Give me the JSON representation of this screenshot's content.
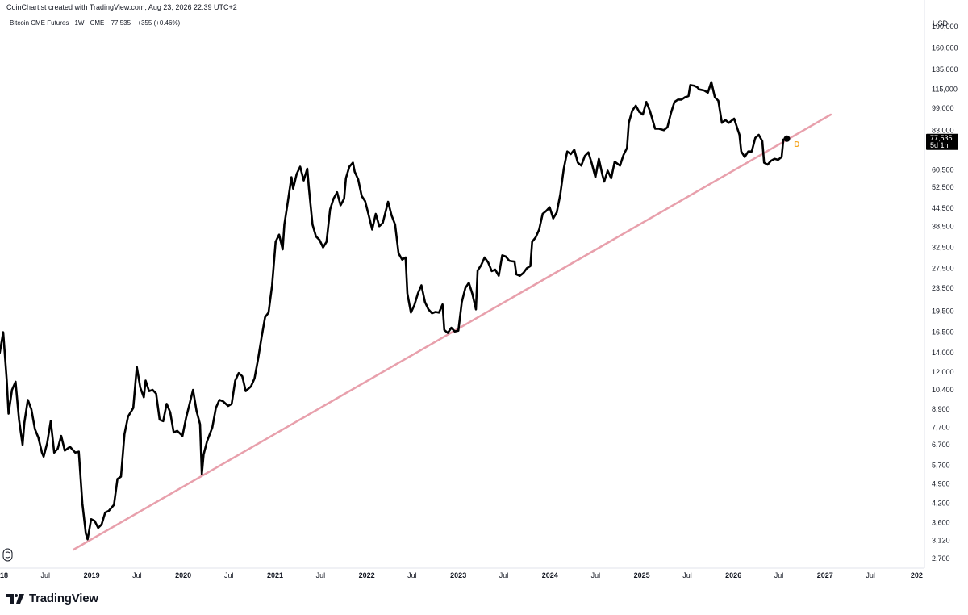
{
  "header": {
    "credit": "CoinChartist created with TradingView.com, Aug 23, 2026 22:39 UTC+2",
    "legend_symbol": "Bitcoin CME Futures · 1W · CME",
    "legend_price": "77,535",
    "legend_change": "+355 (+0.46%)"
  },
  "price_axis": {
    "currency": "USD",
    "last_price_label": "77,535",
    "countdown_label": "5d 1h"
  },
  "brand": {
    "name": "TradingView"
  },
  "colors": {
    "price_line": "#000000",
    "trendline": "#e8a0ac",
    "marker_d": "#f5a623",
    "axis_text": "#131722",
    "price_box": "#000000"
  },
  "chart_data": {
    "type": "line",
    "title": "Bitcoin CME Futures · 1W · CME",
    "scale": "log",
    "ylim": [
      2500,
      235000
    ],
    "xlim": [
      "2018-01-01",
      "2028-02-01"
    ],
    "grid": false,
    "y_ticks": [
      2700,
      3120,
      3600,
      4200,
      4900,
      5700,
      6700,
      7700,
      8900,
      10400,
      12000,
      14000,
      16500,
      19500,
      23500,
      27500,
      32500,
      38500,
      44500,
      52500,
      60500,
      70000,
      83000,
      99000,
      115000,
      135000,
      160000,
      190000
    ],
    "y_tick_labels": [
      "2,700",
      "3,120",
      "3,600",
      "4,200",
      "4,900",
      "5,700",
      "6,700",
      "7,700",
      "8,900",
      "10,400",
      "12,000",
      "14,000",
      "16,500",
      "19,500",
      "23,500",
      "27,500",
      "32,500",
      "38,500",
      "44,500",
      "52,500",
      "60,500",
      "",
      "83,000",
      "99,000",
      "115,000",
      "135,000",
      "160,000",
      "190,000"
    ],
    "x_ticks": [
      {
        "date": "2018-01-01",
        "label": "2018",
        "year": true
      },
      {
        "date": "2018-07-01",
        "label": "Jul",
        "year": false
      },
      {
        "date": "2019-01-01",
        "label": "2019",
        "year": true
      },
      {
        "date": "2019-07-01",
        "label": "Jul",
        "year": false
      },
      {
        "date": "2020-01-01",
        "label": "2020",
        "year": true
      },
      {
        "date": "2020-07-01",
        "label": "Jul",
        "year": false
      },
      {
        "date": "2021-01-01",
        "label": "2021",
        "year": true
      },
      {
        "date": "2021-07-01",
        "label": "Jul",
        "year": false
      },
      {
        "date": "2022-01-01",
        "label": "2022",
        "year": true
      },
      {
        "date": "2022-07-01",
        "label": "Jul",
        "year": false
      },
      {
        "date": "2023-01-01",
        "label": "2023",
        "year": true
      },
      {
        "date": "2023-07-01",
        "label": "Jul",
        "year": false
      },
      {
        "date": "2024-01-01",
        "label": "2024",
        "year": true
      },
      {
        "date": "2024-07-01",
        "label": "Jul",
        "year": false
      },
      {
        "date": "2025-01-01",
        "label": "2025",
        "year": true
      },
      {
        "date": "2025-07-01",
        "label": "Jul",
        "year": false
      },
      {
        "date": "2026-01-01",
        "label": "2026",
        "year": true
      },
      {
        "date": "2026-07-01",
        "label": "Jul",
        "year": false
      },
      {
        "date": "2027-01-01",
        "label": "2027",
        "year": true
      },
      {
        "date": "2027-07-01",
        "label": "Jul",
        "year": false
      },
      {
        "date": "2028-01-01",
        "label": "202",
        "year": true
      }
    ],
    "series": [
      {
        "values": [
          [
            "2017-12-31",
            14000
          ],
          [
            "2018-01-14",
            16500
          ],
          [
            "2018-01-28",
            11200
          ],
          [
            "2018-02-04",
            8600
          ],
          [
            "2018-02-18",
            10400
          ],
          [
            "2018-03-04",
            11100
          ],
          [
            "2018-03-18",
            8200
          ],
          [
            "2018-04-01",
            6700
          ],
          [
            "2018-04-08",
            8000
          ],
          [
            "2018-04-22",
            9600
          ],
          [
            "2018-05-06",
            8900
          ],
          [
            "2018-05-20",
            7600
          ],
          [
            "2018-06-03",
            7100
          ],
          [
            "2018-06-17",
            6300
          ],
          [
            "2018-06-24",
            6100
          ],
          [
            "2018-07-08",
            6800
          ],
          [
            "2018-07-22",
            8100
          ],
          [
            "2018-08-05",
            6300
          ],
          [
            "2018-08-19",
            6500
          ],
          [
            "2018-09-02",
            7200
          ],
          [
            "2018-09-16",
            6400
          ],
          [
            "2018-10-07",
            6600
          ],
          [
            "2018-10-28",
            6300
          ],
          [
            "2018-11-11",
            6350
          ],
          [
            "2018-11-25",
            4200
          ],
          [
            "2018-12-09",
            3300
          ],
          [
            "2018-12-16",
            3150
          ],
          [
            "2018-12-30",
            3700
          ],
          [
            "2019-01-13",
            3650
          ],
          [
            "2019-01-27",
            3450
          ],
          [
            "2019-02-10",
            3550
          ],
          [
            "2019-02-24",
            3900
          ],
          [
            "2019-03-10",
            3950
          ],
          [
            "2019-03-31",
            4150
          ],
          [
            "2019-04-14",
            5100
          ],
          [
            "2019-04-28",
            5200
          ],
          [
            "2019-05-12",
            7300
          ],
          [
            "2019-05-26",
            8400
          ],
          [
            "2019-06-16",
            9000
          ],
          [
            "2019-06-30",
            12500
          ],
          [
            "2019-07-14",
            10600
          ],
          [
            "2019-07-28",
            9800
          ],
          [
            "2019-08-04",
            11200
          ],
          [
            "2019-08-18",
            10300
          ],
          [
            "2019-09-01",
            10400
          ],
          [
            "2019-09-15",
            10100
          ],
          [
            "2019-09-29",
            8200
          ],
          [
            "2019-10-13",
            8100
          ],
          [
            "2019-10-27",
            9300
          ],
          [
            "2019-11-10",
            8700
          ],
          [
            "2019-11-24",
            7400
          ],
          [
            "2019-12-08",
            7500
          ],
          [
            "2019-12-29",
            7200
          ],
          [
            "2020-01-12",
            8300
          ],
          [
            "2020-02-09",
            10400
          ],
          [
            "2020-02-23",
            8800
          ],
          [
            "2020-03-08",
            7900
          ],
          [
            "2020-03-15",
            5300
          ],
          [
            "2020-03-22",
            6200
          ],
          [
            "2020-04-05",
            6900
          ],
          [
            "2020-04-26",
            7700
          ],
          [
            "2020-05-10",
            9000
          ],
          [
            "2020-05-24",
            9600
          ],
          [
            "2020-06-07",
            9500
          ],
          [
            "2020-06-28",
            9150
          ],
          [
            "2020-07-12",
            9300
          ],
          [
            "2020-07-26",
            11200
          ],
          [
            "2020-08-09",
            11900
          ],
          [
            "2020-08-23",
            11600
          ],
          [
            "2020-09-06",
            10300
          ],
          [
            "2020-09-27",
            10700
          ],
          [
            "2020-10-11",
            11400
          ],
          [
            "2020-10-25",
            13300
          ],
          [
            "2020-11-08",
            15800
          ],
          [
            "2020-11-22",
            18600
          ],
          [
            "2020-12-06",
            19300
          ],
          [
            "2020-12-20",
            24000
          ],
          [
            "2021-01-03",
            34000
          ],
          [
            "2021-01-17",
            36000
          ],
          [
            "2021-01-31",
            32000
          ],
          [
            "2021-02-07",
            39000
          ],
          [
            "2021-02-21",
            47000
          ],
          [
            "2021-03-07",
            57000
          ],
          [
            "2021-03-14",
            52000
          ],
          [
            "2021-03-28",
            58500
          ],
          [
            "2021-04-11",
            62000
          ],
          [
            "2021-04-25",
            55500
          ],
          [
            "2021-05-09",
            61000
          ],
          [
            "2021-05-16",
            52000
          ],
          [
            "2021-05-30",
            39000
          ],
          [
            "2021-06-13",
            35500
          ],
          [
            "2021-06-27",
            34500
          ],
          [
            "2021-07-11",
            32500
          ],
          [
            "2021-07-25",
            34000
          ],
          [
            "2021-08-08",
            44000
          ],
          [
            "2021-08-22",
            48000
          ],
          [
            "2021-09-05",
            50500
          ],
          [
            "2021-09-19",
            45500
          ],
          [
            "2021-10-03",
            48000
          ],
          [
            "2021-10-10",
            56500
          ],
          [
            "2021-10-24",
            62000
          ],
          [
            "2021-11-07",
            64000
          ],
          [
            "2021-11-14",
            59500
          ],
          [
            "2021-11-28",
            56000
          ],
          [
            "2021-12-12",
            49000
          ],
          [
            "2021-12-26",
            47000
          ],
          [
            "2022-01-09",
            42000
          ],
          [
            "2022-01-23",
            37500
          ],
          [
            "2022-02-06",
            42500
          ],
          [
            "2022-02-20",
            38500
          ],
          [
            "2022-03-06",
            39500
          ],
          [
            "2022-03-27",
            46800
          ],
          [
            "2022-04-10",
            42000
          ],
          [
            "2022-04-24",
            39000
          ],
          [
            "2022-05-08",
            31000
          ],
          [
            "2022-05-22",
            29500
          ],
          [
            "2022-06-05",
            30000
          ],
          [
            "2022-06-12",
            22500
          ],
          [
            "2022-06-26",
            19300
          ],
          [
            "2022-07-10",
            20500
          ],
          [
            "2022-07-24",
            22500
          ],
          [
            "2022-08-07",
            24000
          ],
          [
            "2022-08-21",
            21000
          ],
          [
            "2022-09-04",
            19800
          ],
          [
            "2022-09-18",
            19200
          ],
          [
            "2022-10-02",
            19400
          ],
          [
            "2022-10-16",
            19300
          ],
          [
            "2022-10-30",
            20600
          ],
          [
            "2022-11-06",
            16800
          ],
          [
            "2022-11-20",
            16400
          ],
          [
            "2022-12-04",
            17100
          ],
          [
            "2022-12-18",
            16600
          ],
          [
            "2023-01-01",
            16700
          ],
          [
            "2023-01-15",
            21000
          ],
          [
            "2023-01-29",
            23500
          ],
          [
            "2023-02-12",
            24500
          ],
          [
            "2023-02-26",
            22400
          ],
          [
            "2023-03-12",
            19800
          ],
          [
            "2023-03-19",
            27000
          ],
          [
            "2023-04-02",
            28200
          ],
          [
            "2023-04-16",
            30000
          ],
          [
            "2023-04-30",
            28800
          ],
          [
            "2023-05-14",
            26900
          ],
          [
            "2023-05-28",
            27200
          ],
          [
            "2023-06-11",
            25900
          ],
          [
            "2023-06-25",
            30500
          ],
          [
            "2023-07-09",
            30200
          ],
          [
            "2023-07-23",
            29200
          ],
          [
            "2023-08-13",
            29000
          ],
          [
            "2023-08-20",
            26200
          ],
          [
            "2023-09-03",
            25900
          ],
          [
            "2023-09-17",
            26500
          ],
          [
            "2023-10-01",
            27500
          ],
          [
            "2023-10-15",
            28000
          ],
          [
            "2023-10-22",
            34000
          ],
          [
            "2023-11-05",
            35200
          ],
          [
            "2023-11-19",
            37500
          ],
          [
            "2023-12-03",
            42500
          ],
          [
            "2023-12-17",
            43500
          ],
          [
            "2023-12-31",
            44800
          ],
          [
            "2024-01-14",
            41000
          ],
          [
            "2024-01-28",
            43000
          ],
          [
            "2024-02-11",
            49500
          ],
          [
            "2024-02-25",
            61000
          ],
          [
            "2024-03-10",
            70000
          ],
          [
            "2024-03-24",
            68500
          ],
          [
            "2024-04-07",
            71000
          ],
          [
            "2024-04-21",
            64000
          ],
          [
            "2024-05-05",
            62500
          ],
          [
            "2024-05-19",
            67500
          ],
          [
            "2024-06-02",
            69500
          ],
          [
            "2024-06-16",
            63500
          ],
          [
            "2024-06-30",
            57000
          ],
          [
            "2024-07-14",
            66000
          ],
          [
            "2024-07-28",
            58000
          ],
          [
            "2024-08-04",
            55000
          ],
          [
            "2024-08-18",
            60000
          ],
          [
            "2024-09-01",
            56500
          ],
          [
            "2024-09-15",
            64500
          ],
          [
            "2024-10-06",
            62500
          ],
          [
            "2024-10-20",
            68000
          ],
          [
            "2024-11-03",
            72000
          ],
          [
            "2024-11-10",
            88000
          ],
          [
            "2024-11-24",
            97000
          ],
          [
            "2024-12-08",
            101000
          ],
          [
            "2024-12-22",
            96000
          ],
          [
            "2025-01-05",
            94000
          ],
          [
            "2025-01-19",
            104000
          ],
          [
            "2025-02-02",
            97000
          ],
          [
            "2025-02-23",
            84000
          ],
          [
            "2025-03-09",
            84000
          ],
          [
            "2025-03-30",
            83000
          ],
          [
            "2025-04-13",
            85000
          ],
          [
            "2025-04-27",
            95000
          ],
          [
            "2025-05-11",
            104000
          ],
          [
            "2025-05-25",
            106000
          ],
          [
            "2025-06-08",
            106000
          ],
          [
            "2025-06-22",
            108000
          ],
          [
            "2025-07-06",
            109000
          ],
          [
            "2025-07-13",
            119000
          ],
          [
            "2025-07-27",
            118500
          ],
          [
            "2025-08-10",
            117000
          ],
          [
            "2025-08-17",
            115000
          ],
          [
            "2025-09-07",
            114000
          ],
          [
            "2025-09-21",
            112000
          ],
          [
            "2025-10-05",
            122000
          ],
          [
            "2025-10-19",
            108000
          ],
          [
            "2025-11-02",
            105000
          ],
          [
            "2025-11-16",
            88000
          ],
          [
            "2025-11-30",
            90000
          ],
          [
            "2025-12-14",
            88000
          ],
          [
            "2026-01-04",
            91000
          ],
          [
            "2026-01-25",
            80000
          ],
          [
            "2026-02-01",
            70000
          ],
          [
            "2026-02-15",
            67000
          ],
          [
            "2026-03-01",
            70000
          ],
          [
            "2026-03-15",
            70000
          ],
          [
            "2026-03-29",
            78000
          ],
          [
            "2026-04-12",
            80000
          ],
          [
            "2026-04-26",
            76000
          ],
          [
            "2026-05-03",
            64000
          ],
          [
            "2026-05-17",
            63000
          ],
          [
            "2026-05-31",
            65000
          ],
          [
            "2026-06-14",
            66000
          ],
          [
            "2026-06-28",
            65500
          ],
          [
            "2026-07-12",
            67000
          ],
          [
            "2026-07-19",
            77000
          ],
          [
            "2026-08-02",
            77535
          ]
        ]
      }
    ],
    "trendline": {
      "start": [
        "2018-10-21",
        2900
      ],
      "end": [
        "2027-01-24",
        94000
      ]
    },
    "last_point": {
      "date": "2026-08-02",
      "value": 77535
    },
    "marker": {
      "date": "2026-08-30",
      "value": 74500,
      "label": "D"
    }
  }
}
